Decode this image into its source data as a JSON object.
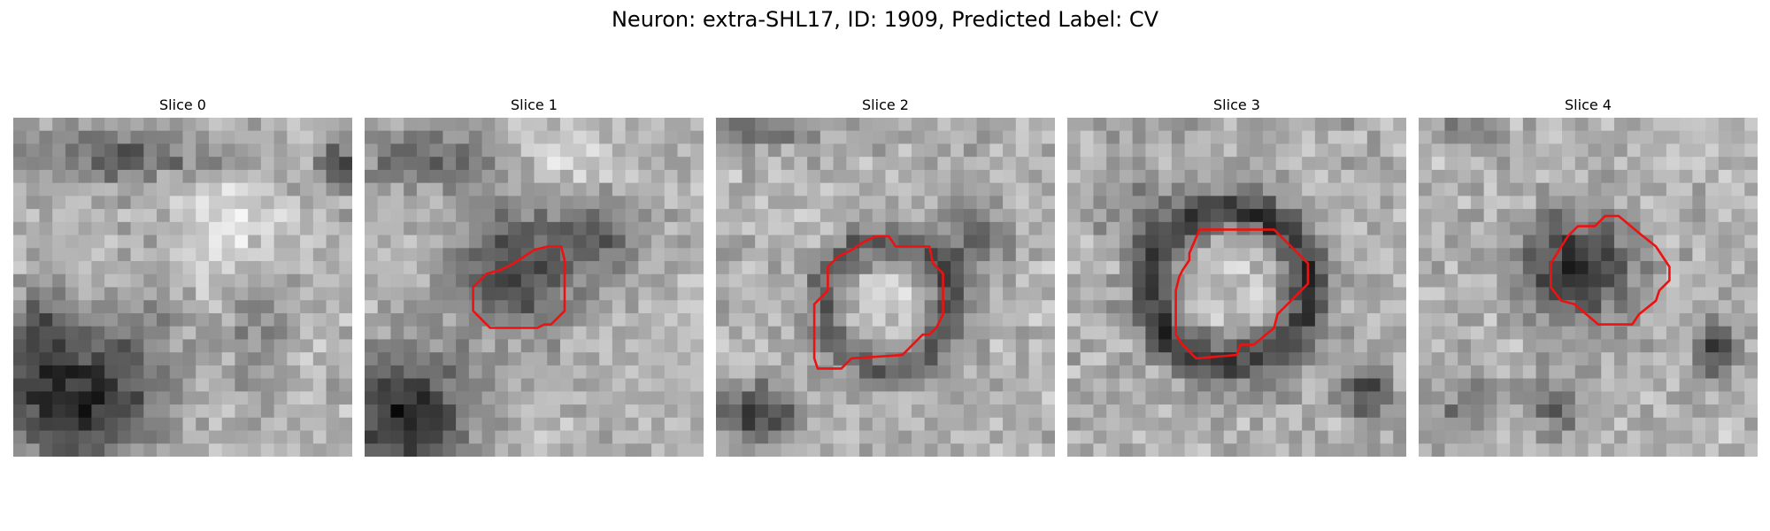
{
  "figure": {
    "title": "Neuron: extra-SHL17, ID: 1909, Predicted Label: CV",
    "outline_color": "#ee1111"
  },
  "panels": [
    {
      "label": "Slice 0"
    },
    {
      "label": "Slice 1"
    },
    {
      "label": "Slice 2"
    },
    {
      "label": "Slice 3"
    },
    {
      "label": "Slice 4"
    }
  ]
}
